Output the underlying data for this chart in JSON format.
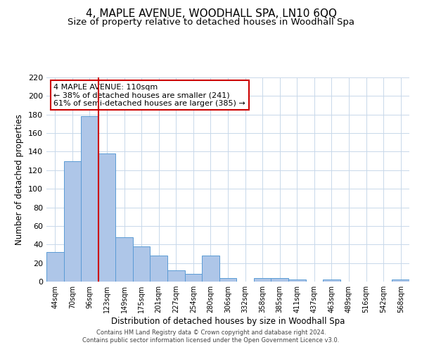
{
  "title": "4, MAPLE AVENUE, WOODHALL SPA, LN10 6QQ",
  "subtitle": "Size of property relative to detached houses in Woodhall Spa",
  "xlabel": "Distribution of detached houses by size in Woodhall Spa",
  "ylabel": "Number of detached properties",
  "bar_labels": [
    "44sqm",
    "70sqm",
    "96sqm",
    "123sqm",
    "149sqm",
    "175sqm",
    "201sqm",
    "227sqm",
    "254sqm",
    "280sqm",
    "306sqm",
    "332sqm",
    "358sqm",
    "385sqm",
    "411sqm",
    "437sqm",
    "463sqm",
    "489sqm",
    "516sqm",
    "542sqm",
    "568sqm"
  ],
  "bar_values": [
    32,
    130,
    178,
    138,
    48,
    38,
    28,
    12,
    8,
    28,
    4,
    0,
    4,
    4,
    2,
    0,
    2,
    0,
    0,
    0,
    2
  ],
  "bar_color": "#aec6e8",
  "bar_edge_color": "#5b9bd5",
  "vline_color": "#cc0000",
  "vline_pos": 2.5,
  "ylim": [
    0,
    220
  ],
  "yticks": [
    0,
    20,
    40,
    60,
    80,
    100,
    120,
    140,
    160,
    180,
    200,
    220
  ],
  "annotation_title": "4 MAPLE AVENUE: 110sqm",
  "annotation_line1": "← 38% of detached houses are smaller (241)",
  "annotation_line2": "61% of semi-detached houses are larger (385) →",
  "annotation_box_color": "#ffffff",
  "annotation_box_edgecolor": "#cc0000",
  "footer_line1": "Contains HM Land Registry data © Crown copyright and database right 2024.",
  "footer_line2": "Contains public sector information licensed under the Open Government Licence v3.0.",
  "background_color": "#ffffff",
  "grid_color": "#c8d8ea",
  "title_fontsize": 11,
  "subtitle_fontsize": 9.5,
  "xlabel_fontsize": 8.5,
  "ylabel_fontsize": 8.5
}
